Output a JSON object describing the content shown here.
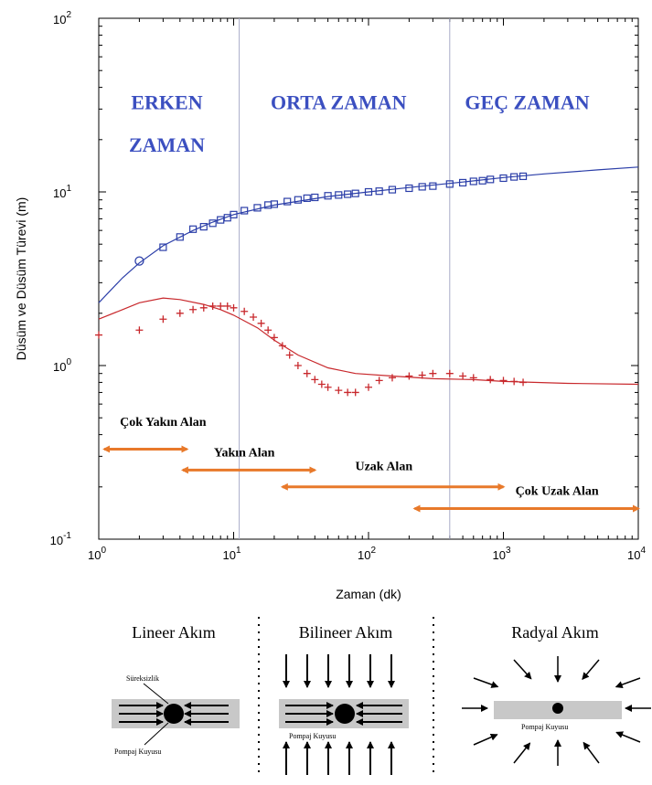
{
  "chart_data": {
    "type": "scatter",
    "x_scale": "log",
    "y_scale": "log",
    "xlim": [
      1,
      10000
    ],
    "ylim": [
      0.1,
      100
    ],
    "xlabel": "Zaman (dk)",
    "ylabel": "Düsüm ve Düsüm Türevi (m)",
    "x_ticks": [
      {
        "value": 1,
        "base": "10",
        "exp": "0"
      },
      {
        "value": 10,
        "base": "10",
        "exp": "1"
      },
      {
        "value": 100,
        "base": "10",
        "exp": "2"
      },
      {
        "value": 1000,
        "base": "10",
        "exp": "3"
      },
      {
        "value": 10000,
        "base": "10",
        "exp": "4"
      }
    ],
    "y_ticks": [
      {
        "value": 0.1,
        "base": "10",
        "exp": "-1"
      },
      {
        "value": 1,
        "base": "10",
        "exp": "0"
      },
      {
        "value": 10,
        "base": "10",
        "exp": "1"
      },
      {
        "value": 100,
        "base": "10",
        "exp": "2"
      }
    ],
    "phase_boundaries": [
      11,
      400
    ],
    "phases": [
      {
        "lines": [
          "ERKEN",
          "ZAMAN"
        ],
        "x": 3.2,
        "y": [
          30,
          17
        ]
      },
      {
        "lines": [
          "ORTA ZAMAN"
        ],
        "x": 60,
        "y": [
          30
        ]
      },
      {
        "lines": [
          "GEÇ ZAMAN"
        ],
        "x": 1500,
        "y": [
          30
        ]
      }
    ],
    "regions": [
      {
        "label": "Çok Yakın Alan",
        "x_range": [
          1.1,
          4.5
        ],
        "y": 0.33,
        "label_x": 3,
        "label_y": 0.45
      },
      {
        "label": "Yakın Alan",
        "x_range": [
          4.2,
          40
        ],
        "y": 0.25,
        "label_x": 12,
        "label_y": 0.3
      },
      {
        "label": "Uzak Alan",
        "x_range": [
          23,
          1000
        ],
        "y": 0.2,
        "label_x": 130,
        "label_y": 0.25
      },
      {
        "label": "Çok Uzak Alan",
        "x_range": [
          220,
          10000
        ],
        "y": 0.15,
        "label_x": 2500,
        "label_y": 0.18
      }
    ],
    "series": [
      {
        "kind": "drawdown_data",
        "color": "#2b3ea8",
        "marker": "square",
        "points": [
          [
            2,
            4.0
          ],
          [
            3,
            4.8
          ],
          [
            4,
            5.5
          ],
          [
            5,
            6.1
          ],
          [
            6,
            6.3
          ],
          [
            7,
            6.6
          ],
          [
            8,
            6.9
          ],
          [
            9,
            7.1
          ],
          [
            10,
            7.4
          ],
          [
            12,
            7.8
          ],
          [
            15,
            8.1
          ],
          [
            18,
            8.4
          ],
          [
            20,
            8.5
          ],
          [
            25,
            8.8
          ],
          [
            30,
            9.0
          ],
          [
            35,
            9.2
          ],
          [
            40,
            9.3
          ],
          [
            50,
            9.5
          ],
          [
            60,
            9.6
          ],
          [
            70,
            9.7
          ],
          [
            80,
            9.8
          ],
          [
            100,
            10.0
          ],
          [
            120,
            10.1
          ],
          [
            150,
            10.3
          ],
          [
            200,
            10.5
          ],
          [
            250,
            10.7
          ],
          [
            300,
            10.8
          ],
          [
            400,
            11.1
          ],
          [
            500,
            11.3
          ],
          [
            600,
            11.5
          ],
          [
            700,
            11.6
          ],
          [
            800,
            11.8
          ],
          [
            1000,
            12.0
          ],
          [
            1200,
            12.2
          ],
          [
            1400,
            12.3
          ]
        ]
      },
      {
        "kind": "drawdown_model",
        "color": "#2b3ea8",
        "line_points": [
          [
            1,
            2.3
          ],
          [
            1.5,
            3.2
          ],
          [
            2,
            3.9
          ],
          [
            3,
            4.9
          ],
          [
            5,
            6.0
          ],
          [
            7,
            6.7
          ],
          [
            10,
            7.4
          ],
          [
            20,
            8.4
          ],
          [
            50,
            9.4
          ],
          [
            100,
            10.0
          ],
          [
            200,
            10.6
          ],
          [
            500,
            11.4
          ],
          [
            1000,
            12.1
          ],
          [
            2000,
            12.7
          ],
          [
            5000,
            13.4
          ],
          [
            10000,
            13.9
          ]
        ]
      },
      {
        "kind": "derivative_data",
        "color": "#c8282c",
        "marker": "plus",
        "points": [
          [
            1.0,
            1.5
          ],
          [
            2,
            1.6
          ],
          [
            3,
            1.85
          ],
          [
            4,
            2.0
          ],
          [
            5,
            2.1
          ],
          [
            6,
            2.15
          ],
          [
            7,
            2.2
          ],
          [
            8,
            2.2
          ],
          [
            9,
            2.2
          ],
          [
            10,
            2.15
          ],
          [
            12,
            2.05
          ],
          [
            14,
            1.9
          ],
          [
            16,
            1.75
          ],
          [
            18,
            1.6
          ],
          [
            20,
            1.45
          ],
          [
            23,
            1.3
          ],
          [
            26,
            1.15
          ],
          [
            30,
            1.0
          ],
          [
            35,
            0.9
          ],
          [
            40,
            0.83
          ],
          [
            45,
            0.78
          ],
          [
            50,
            0.75
          ],
          [
            60,
            0.72
          ],
          [
            70,
            0.7
          ],
          [
            80,
            0.7
          ],
          [
            100,
            0.75
          ],
          [
            120,
            0.82
          ],
          [
            150,
            0.85
          ],
          [
            200,
            0.87
          ],
          [
            250,
            0.88
          ],
          [
            300,
            0.9
          ],
          [
            400,
            0.9
          ],
          [
            500,
            0.87
          ],
          [
            600,
            0.85
          ],
          [
            800,
            0.83
          ],
          [
            1000,
            0.82
          ],
          [
            1200,
            0.81
          ],
          [
            1400,
            0.8
          ]
        ]
      },
      {
        "kind": "derivative_model",
        "color": "#c8282c",
        "line_points": [
          [
            1,
            1.85
          ],
          [
            1.5,
            2.1
          ],
          [
            2,
            2.3
          ],
          [
            3,
            2.45
          ],
          [
            4,
            2.4
          ],
          [
            6,
            2.25
          ],
          [
            8,
            2.1
          ],
          [
            10,
            1.95
          ],
          [
            15,
            1.65
          ],
          [
            20,
            1.4
          ],
          [
            30,
            1.15
          ],
          [
            50,
            0.97
          ],
          [
            80,
            0.9
          ],
          [
            150,
            0.87
          ],
          [
            300,
            0.84
          ],
          [
            600,
            0.83
          ],
          [
            1000,
            0.81
          ],
          [
            3000,
            0.79
          ],
          [
            10000,
            0.78
          ]
        ]
      }
    ]
  },
  "flow_panels": [
    {
      "title": "Lineer Akım",
      "top_label": "Süreksizlik",
      "bottom_label": "Pompaj Kuyusu"
    },
    {
      "title": "Bilineer Akım",
      "bottom_label": "Pompaj Kuyusu"
    },
    {
      "title": "Radyal Akım",
      "bottom_label": "Pompaj Kuyusu"
    }
  ],
  "colors": {
    "blue": "#2b3ea8",
    "red": "#c8282c",
    "arrow": "#e8792a",
    "phase_text": "#3b4fc0",
    "boundary": "#a8abc8"
  }
}
